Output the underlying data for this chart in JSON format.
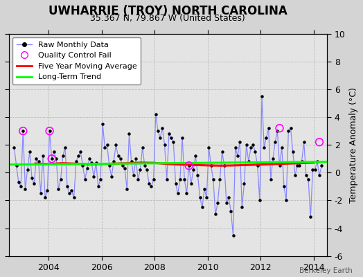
{
  "title": "UWHARRIE (TROY) NORTH CAROLINA",
  "subtitle": "35.367 N, 79.867 W (United States)",
  "ylabel": "Temperature Anomaly (°C)",
  "attribution": "Berkeley Earth",
  "xlim": [
    2002.5,
    2014.5
  ],
  "ylim": [
    -6,
    10
  ],
  "yticks": [
    -6,
    -4,
    -2,
    0,
    2,
    4,
    6,
    8,
    10
  ],
  "xticks": [
    2004,
    2006,
    2008,
    2010,
    2012,
    2014
  ],
  "bg_color": "#e0e0e0",
  "plot_bg": "#e8e8e8",
  "line_color": "#8888ff",
  "raw_x": [
    2002.708,
    2002.792,
    2002.875,
    2002.958,
    2003.042,
    2003.125,
    2003.208,
    2003.292,
    2003.375,
    2003.458,
    2003.542,
    2003.625,
    2003.708,
    2003.792,
    2003.875,
    2003.958,
    2004.042,
    2004.125,
    2004.208,
    2004.292,
    2004.375,
    2004.458,
    2004.542,
    2004.625,
    2004.708,
    2004.792,
    2004.875,
    2004.958,
    2005.042,
    2005.125,
    2005.208,
    2005.292,
    2005.375,
    2005.458,
    2005.542,
    2005.625,
    2005.708,
    2005.792,
    2005.875,
    2005.958,
    2006.042,
    2006.125,
    2006.208,
    2006.292,
    2006.375,
    2006.458,
    2006.542,
    2006.625,
    2006.708,
    2006.792,
    2006.875,
    2006.958,
    2007.042,
    2007.125,
    2007.208,
    2007.292,
    2007.375,
    2007.458,
    2007.542,
    2007.625,
    2007.708,
    2007.792,
    2007.875,
    2007.958,
    2008.042,
    2008.125,
    2008.208,
    2008.292,
    2008.375,
    2008.458,
    2008.542,
    2008.625,
    2008.708,
    2008.792,
    2008.875,
    2008.958,
    2009.042,
    2009.125,
    2009.208,
    2009.292,
    2009.375,
    2009.458,
    2009.542,
    2009.625,
    2009.708,
    2009.792,
    2009.875,
    2009.958,
    2010.042,
    2010.125,
    2010.208,
    2010.292,
    2010.375,
    2010.458,
    2010.542,
    2010.625,
    2010.708,
    2010.792,
    2010.875,
    2010.958,
    2011.042,
    2011.125,
    2011.208,
    2011.292,
    2011.375,
    2011.458,
    2011.542,
    2011.625,
    2011.708,
    2011.792,
    2011.875,
    2011.958,
    2012.042,
    2012.125,
    2012.208,
    2012.292,
    2012.375,
    2012.458,
    2012.542,
    2012.625,
    2012.708,
    2012.792,
    2012.875,
    2012.958,
    2013.042,
    2013.125,
    2013.208,
    2013.292,
    2013.375,
    2013.458,
    2013.542,
    2013.625,
    2013.708,
    2013.792,
    2013.875,
    2013.958,
    2014.042,
    2014.125,
    2014.208,
    2014.292
  ],
  "raw_y": [
    1.8,
    0.5,
    -0.7,
    -1.0,
    3.0,
    -1.2,
    0.2,
    1.5,
    -0.4,
    -0.8,
    1.0,
    0.8,
    -1.5,
    1.2,
    -1.8,
    -1.3,
    3.0,
    1.0,
    1.5,
    1.0,
    -1.2,
    -0.5,
    1.2,
    1.8,
    -1.0,
    -1.5,
    -1.3,
    -1.8,
    0.8,
    1.2,
    1.5,
    0.5,
    -0.5,
    0.3,
    1.0,
    0.7,
    -0.3,
    0.7,
    -1.0,
    -0.5,
    3.5,
    1.8,
    2.0,
    0.5,
    -0.3,
    0.8,
    2.0,
    1.2,
    1.0,
    0.5,
    0.3,
    -1.2,
    2.8,
    0.8,
    -0.2,
    1.0,
    -0.5,
    0.2,
    1.8,
    0.5,
    0.2,
    -0.8,
    -1.0,
    -0.5,
    4.2,
    3.0,
    2.5,
    3.2,
    2.0,
    -0.5,
    2.8,
    2.5,
    2.2,
    -0.8,
    -1.5,
    -0.5,
    2.5,
    -0.5,
    -1.5,
    0.5,
    -0.8,
    0.2,
    1.2,
    -0.2,
    -1.8,
    -2.5,
    -1.2,
    -1.8,
    1.8,
    0.5,
    -0.5,
    -3.0,
    -2.2,
    -0.5,
    1.5,
    0.5,
    -2.2,
    -1.8,
    -2.8,
    -4.5,
    1.8,
    1.2,
    2.2,
    -2.5,
    -0.8,
    2.0,
    0.8,
    1.8,
    2.0,
    1.5,
    0.5,
    -2.0,
    5.5,
    1.8,
    2.5,
    3.2,
    -0.5,
    1.0,
    2.2,
    3.0,
    0.5,
    1.8,
    -1.0,
    -2.0,
    3.0,
    3.2,
    1.5,
    -0.2,
    0.5,
    0.5,
    0.8,
    2.2,
    -0.2,
    -0.5,
    -3.2,
    0.2,
    0.2,
    0.8,
    -0.2,
    0.5
  ],
  "qc_fail_x": [
    2003.042,
    2004.042,
    2004.125,
    2009.292,
    2012.708,
    2014.208
  ],
  "qc_fail_y": [
    3.0,
    3.0,
    1.0,
    0.5,
    3.2,
    2.2
  ],
  "moving_avg_x": [
    2003.5,
    2004.0,
    2004.5,
    2005.0,
    2005.5,
    2006.0,
    2006.5,
    2007.0,
    2007.5,
    2008.0,
    2008.5,
    2009.0,
    2009.5,
    2010.0,
    2010.5,
    2011.0,
    2011.5,
    2012.0,
    2012.5,
    2013.0,
    2013.5,
    2014.0
  ],
  "moving_avg_y": [
    0.65,
    0.62,
    0.68,
    0.65,
    0.6,
    0.62,
    0.65,
    0.68,
    0.72,
    0.7,
    0.62,
    0.58,
    0.55,
    0.52,
    0.5,
    0.52,
    0.55,
    0.58,
    0.62,
    0.65,
    0.68,
    0.72
  ],
  "trend_x": [
    2002.5,
    2014.5
  ],
  "trend_y": [
    0.58,
    0.78
  ]
}
